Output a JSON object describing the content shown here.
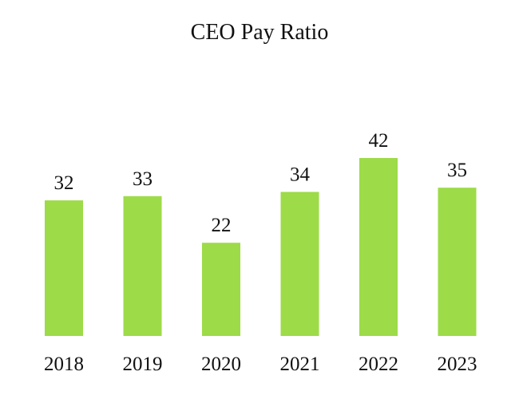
{
  "chart_data": {
    "type": "bar",
    "title": "CEO Pay Ratio",
    "categories": [
      "2018",
      "2019",
      "2020",
      "2021",
      "2022",
      "2023"
    ],
    "values": [
      32,
      33,
      22,
      34,
      42,
      35
    ],
    "data_labels": [
      "32",
      "33",
      "22",
      "34",
      "42",
      "35"
    ],
    "xlabel": "",
    "ylabel": "",
    "ylim": [
      0,
      42
    ],
    "grid": false,
    "legend": "none",
    "bar_color": "#9ddb48"
  }
}
